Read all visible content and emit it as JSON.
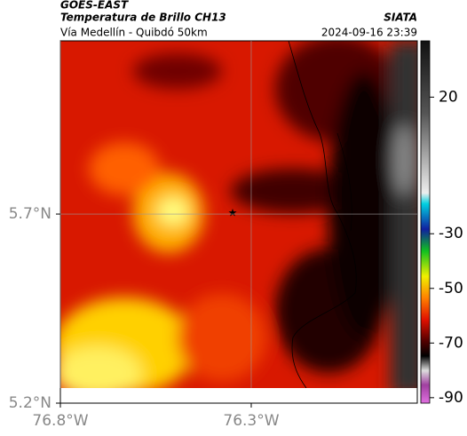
{
  "header": {
    "title": "GOES-EAST",
    "subtitle": "Temperatura de Brillo CH13",
    "region": "Vía Medellín - Quibdó 50km",
    "source": "SIATA",
    "timestamp": "2024-09-16 23:39"
  },
  "map": {
    "xlim": [
      -76.8,
      -75.865
    ],
    "ylim": [
      5.2,
      6.158
    ],
    "xticks": [
      {
        "value": -76.8,
        "label": "76.8°W"
      },
      {
        "value": -76.3,
        "label": "76.3°W"
      }
    ],
    "yticks": [
      {
        "value": 5.2,
        "label": "5.2°N"
      },
      {
        "value": 5.7,
        "label": "5.7°N"
      }
    ],
    "grid": true
  },
  "colorbar": {
    "lim": [
      -92,
      40.6
    ],
    "ticks": [
      20,
      -30,
      -50,
      -70,
      -90
    ]
  }
}
